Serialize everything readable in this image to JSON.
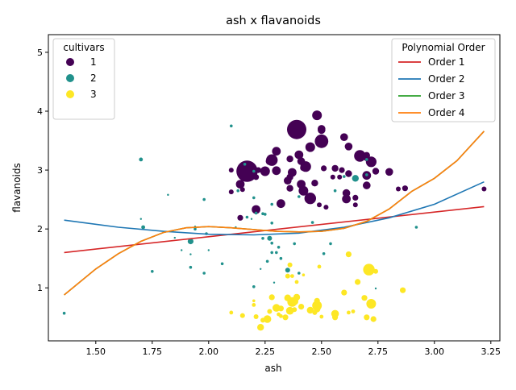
{
  "chart_data": {
    "type": "scatter",
    "title": "ash x flavanoids",
    "xlabel": "ash",
    "ylabel": "flavanoids",
    "xlim": [
      1.29,
      3.29
    ],
    "ylim": [
      0.1,
      5.3
    ],
    "xticks": [
      1.5,
      1.75,
      2.0,
      2.25,
      2.5,
      2.75,
      3.0,
      3.25
    ],
    "xtick_labels": [
      "1.50",
      "1.75",
      "2.00",
      "2.25",
      "2.50",
      "2.75",
      "3.00",
      "3.25"
    ],
    "yticks": [
      1,
      2,
      3,
      4,
      5
    ],
    "ytick_labels": [
      "1",
      "2",
      "3",
      "4",
      "5"
    ],
    "grid": false,
    "point_size_note": "marker size varies per point",
    "color_legend": {
      "title": "cultivars",
      "placement": "top-left",
      "entries": [
        {
          "label": "1",
          "color": "#440154"
        },
        {
          "label": "2",
          "color": "#21918c"
        },
        {
          "label": "3",
          "color": "#fde725"
        }
      ]
    },
    "series": [
      {
        "class": "1",
        "color": "#440154",
        "points": [
          [
            2.43,
            3.06,
            11
          ],
          [
            2.14,
            2.76,
            9
          ],
          [
            2.67,
            3.24,
            12
          ],
          [
            2.5,
            3.49,
            14
          ],
          [
            2.87,
            2.69,
            6
          ],
          [
            2.45,
            3.39,
            10
          ],
          [
            2.45,
            2.52,
            12
          ],
          [
            2.61,
            2.51,
            9
          ],
          [
            2.17,
            2.98,
            22
          ],
          [
            2.27,
            3.15,
            8
          ],
          [
            2.3,
            3.32,
            9
          ],
          [
            2.32,
            2.43,
            9
          ],
          [
            2.41,
            2.76,
            9
          ],
          [
            2.39,
            3.69,
            20
          ],
          [
            2.38,
            3.64,
            8
          ],
          [
            2.7,
            2.91,
            9
          ],
          [
            2.72,
            3.14,
            11
          ],
          [
            2.62,
            3.4,
            8
          ],
          [
            2.48,
            3.93,
            10
          ],
          [
            2.56,
            3.03,
            7
          ],
          [
            2.28,
            3.17,
            12
          ],
          [
            2.65,
            2.41,
            5
          ],
          [
            2.36,
            2.88,
            7
          ],
          [
            2.52,
            2.37,
            5
          ],
          [
            2.61,
            2.61,
            8
          ],
          [
            3.22,
            2.68,
            5
          ],
          [
            2.62,
            2.94,
            7
          ],
          [
            2.14,
            2.19,
            6
          ],
          [
            2.8,
            2.97,
            8
          ],
          [
            2.21,
            2.33,
            9
          ],
          [
            2.7,
            3.25,
            7
          ],
          [
            2.36,
            3.19,
            7
          ],
          [
            2.36,
            2.69,
            7
          ],
          [
            2.7,
            2.74,
            8
          ],
          [
            2.65,
            2.53,
            6
          ],
          [
            2.1,
            3.0,
            5
          ],
          [
            2.4,
            3.26,
            9
          ],
          [
            2.84,
            2.68,
            5
          ],
          [
            2.21,
            2.88,
            6
          ],
          [
            2.49,
            2.41,
            5
          ],
          [
            2.6,
            3.56,
            8
          ],
          [
            2.25,
            2.98,
            10
          ],
          [
            2.42,
            3.04,
            7
          ],
          [
            2.15,
            2.67,
            5
          ],
          [
            2.1,
            2.63,
            5
          ],
          [
            2.47,
            2.78,
            7
          ],
          [
            2.3,
            2.99,
            9
          ],
          [
            2.22,
            3.0,
            6
          ],
          [
            2.51,
            3.03,
            6
          ],
          [
            2.55,
            2.88,
            5
          ],
          [
            2.5,
            3.68,
            8
          ],
          [
            2.42,
            2.65,
            10
          ],
          [
            2.74,
            2.98,
            7
          ],
          [
            2.58,
            2.88,
            5
          ],
          [
            2.59,
            3.0,
            6
          ],
          [
            2.37,
            2.96,
            9
          ],
          [
            2.41,
            3.15,
            8
          ],
          [
            2.35,
            2.82,
            8
          ],
          [
            2.5,
            3.7,
            8
          ],
          [
            2.7,
            3.2,
            6
          ]
        ]
      },
      {
        "class": "2",
        "color": "#21918c",
        "points": [
          [
            1.36,
            0.57,
            3
          ],
          [
            2.28,
            2.42,
            3
          ],
          [
            1.92,
            1.79,
            6
          ],
          [
            2.16,
            3.1,
            3
          ],
          [
            2.38,
            1.75,
            3
          ],
          [
            2.13,
            2.65,
            3
          ],
          [
            2.7,
            3.18,
            3
          ],
          [
            1.94,
            2.0,
            3
          ],
          [
            2.28,
            2.1,
            3
          ],
          [
            2.17,
            2.2,
            3
          ],
          [
            2.92,
            2.03,
            3
          ],
          [
            2.35,
            1.3,
            5
          ],
          [
            2.2,
            1.02,
            3
          ],
          [
            1.82,
            2.58,
            2
          ],
          [
            2.2,
            2.53,
            3
          ],
          [
            1.98,
            2.5,
            3
          ],
          [
            2.06,
            1.41,
            3
          ],
          [
            1.7,
            3.18,
            4
          ],
          [
            1.85,
            1.85,
            2
          ],
          [
            1.7,
            2.17,
            2
          ],
          [
            2.46,
            2.11,
            3
          ],
          [
            1.98,
            1.25,
            3
          ],
          [
            1.88,
            1.64,
            2
          ],
          [
            2.27,
            1.84,
            5
          ],
          [
            2.12,
            2.03,
            2
          ],
          [
            2.28,
            1.76,
            3
          ],
          [
            1.94,
            2.04,
            2
          ],
          [
            2.7,
            2.92,
            3
          ],
          [
            1.82,
            2.58,
            2
          ],
          [
            1.75,
            1.28,
            3
          ],
          [
            2.21,
            2.27,
            3
          ],
          [
            2.56,
            2.65,
            3
          ],
          [
            1.99,
            1.92,
            3
          ],
          [
            2.24,
            2.26,
            3
          ],
          [
            2.19,
            2.17,
            2
          ],
          [
            2.1,
            3.75,
            3
          ],
          [
            2.6,
            2.89,
            3
          ],
          [
            2.54,
            1.75,
            3
          ],
          [
            2.26,
            1.45,
            3
          ],
          [
            2.0,
            1.64,
            2
          ],
          [
            1.92,
            1.57,
            2
          ],
          [
            2.3,
            1.6,
            3
          ],
          [
            2.32,
            1.5,
            3
          ],
          [
            2.24,
            1.84,
            3
          ],
          [
            2.31,
            1.69,
            3
          ],
          [
            2.4,
            2.55,
            3
          ],
          [
            2.51,
            1.58,
            3
          ],
          [
            2.23,
            1.32,
            2
          ],
          [
            2.65,
            2.86,
            7
          ],
          [
            2.29,
            1.09,
            2
          ],
          [
            1.92,
            1.35,
            3
          ],
          [
            1.71,
            2.03,
            4
          ],
          [
            2.4,
            1.25,
            3
          ],
          [
            2.25,
            2.25,
            3
          ],
          [
            2.28,
            1.6,
            3
          ],
          [
            2.74,
            0.99,
            2
          ],
          [
            2.2,
            2.98,
            3
          ]
        ]
      },
      {
        "class": "3",
        "color": "#fde725",
        "points": [
          [
            2.48,
            0.7,
            10
          ],
          [
            2.36,
            0.61,
            8
          ],
          [
            2.37,
            0.76,
            10
          ],
          [
            2.73,
            0.47,
            6
          ],
          [
            2.48,
            0.64,
            7
          ],
          [
            2.62,
            0.58,
            4
          ],
          [
            2.6,
            0.92,
            6
          ],
          [
            2.72,
            0.73,
            10
          ],
          [
            2.27,
            0.6,
            5
          ],
          [
            2.38,
            0.77,
            8
          ],
          [
            2.21,
            0.51,
            5
          ],
          [
            2.71,
            1.31,
            12
          ],
          [
            2.36,
            1.39,
            5
          ],
          [
            2.37,
            1.2,
            4
          ],
          [
            2.39,
            1.1,
            4
          ],
          [
            2.74,
            1.28,
            5
          ],
          [
            2.2,
            0.71,
            4
          ],
          [
            2.28,
            0.84,
            6
          ],
          [
            2.3,
            0.66,
            8
          ],
          [
            2.32,
            0.65,
            6
          ],
          [
            2.5,
            0.51,
            4
          ],
          [
            2.64,
            0.6,
            4
          ],
          [
            2.56,
            0.5,
            6
          ],
          [
            2.86,
            0.96,
            6
          ],
          [
            2.32,
            0.52,
            4
          ],
          [
            2.34,
            0.5,
            6
          ],
          [
            2.7,
            0.5,
            6
          ],
          [
            2.48,
            0.78,
            6
          ],
          [
            2.39,
            0.84,
            7
          ],
          [
            2.45,
            0.62,
            7
          ],
          [
            2.23,
            0.33,
            7
          ],
          [
            2.26,
            0.47,
            8
          ],
          [
            2.47,
            0.58,
            5
          ],
          [
            2.38,
            0.63,
            5
          ],
          [
            2.62,
            1.57,
            6
          ],
          [
            2.56,
            0.56,
            8
          ],
          [
            2.66,
            1.1,
            6
          ],
          [
            2.49,
            1.36,
            4
          ],
          [
            2.42,
            1.22,
            3
          ],
          [
            2.35,
            1.2,
            5
          ],
          [
            2.31,
            0.55,
            4
          ],
          [
            2.2,
            0.78,
            3
          ],
          [
            2.1,
            0.58,
            4
          ],
          [
            2.15,
            0.53,
            5
          ],
          [
            2.24,
            0.45,
            5
          ],
          [
            2.35,
            0.83,
            7
          ],
          [
            2.41,
            0.68,
            6
          ],
          [
            2.69,
            0.83,
            6
          ]
        ]
      }
    ],
    "fit_legend": {
      "title": "Polynomial Order",
      "placement": "top-right",
      "entries": [
        {
          "label": "Order 1",
          "color": "#d62728"
        },
        {
          "label": "Order 2",
          "color": "#1f77b4"
        },
        {
          "label": "Order 3",
          "color": "#2ca02c"
        },
        {
          "label": "Order 4",
          "color": "#ff7f0e"
        }
      ]
    },
    "fit_lines": [
      {
        "label": "Order 1",
        "color": "#d62728",
        "x": [
          1.36,
          3.22
        ],
        "y": [
          1.6,
          2.38
        ]
      },
      {
        "label": "Order 2",
        "color": "#1f77b4",
        "x": [
          1.36,
          1.6,
          1.8,
          2.0,
          2.2,
          2.4,
          2.6,
          2.8,
          3.0,
          3.22
        ],
        "y": [
          2.15,
          2.03,
          1.96,
          1.91,
          1.9,
          1.93,
          2.03,
          2.19,
          2.42,
          2.8
        ]
      },
      {
        "label": "Order 3",
        "color": "#2ca02c",
        "x": [
          1.36,
          1.5,
          1.6,
          1.7,
          1.8,
          1.9,
          2.0,
          2.1,
          2.2,
          2.3,
          2.4,
          2.5,
          2.6,
          2.7,
          2.8,
          2.9,
          3.0,
          3.1,
          3.22
        ],
        "y": [
          0.88,
          1.32,
          1.58,
          1.79,
          1.94,
          2.02,
          2.04,
          2.02,
          1.99,
          1.96,
          1.95,
          1.96,
          2.01,
          2.13,
          2.34,
          2.64,
          2.86,
          3.16,
          3.66
        ]
      },
      {
        "label": "Order 4",
        "color": "#ff7f0e",
        "x": [
          1.36,
          1.5,
          1.6,
          1.7,
          1.8,
          1.9,
          2.0,
          2.1,
          2.2,
          2.3,
          2.4,
          2.5,
          2.6,
          2.7,
          2.8,
          2.9,
          3.0,
          3.1,
          3.22
        ],
        "y": [
          0.88,
          1.32,
          1.58,
          1.79,
          1.94,
          2.02,
          2.04,
          2.02,
          1.99,
          1.96,
          1.95,
          1.96,
          2.01,
          2.13,
          2.34,
          2.64,
          2.86,
          3.16,
          3.66
        ]
      }
    ]
  }
}
